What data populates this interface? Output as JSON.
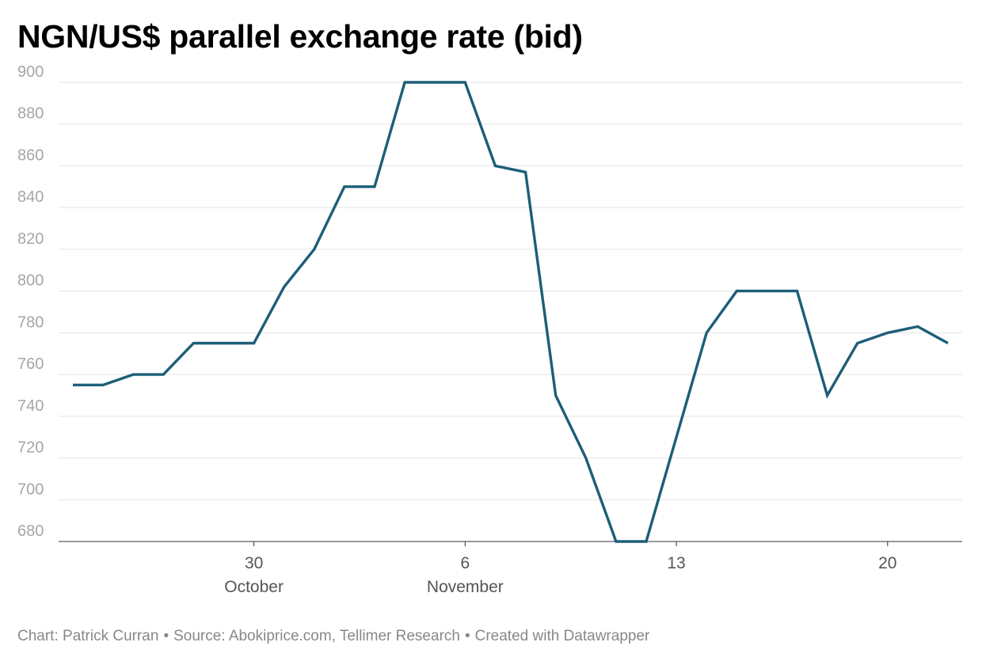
{
  "chart_data": {
    "type": "line",
    "title": "NGN/US$ parallel exchange rate (bid)",
    "xlabel": "",
    "ylabel": "",
    "x_axis": {
      "type": "date",
      "range": [
        "2022-10-24",
        "2022-11-22"
      ],
      "ticks": [
        {
          "date": "2022-10-30",
          "label": "30",
          "sublabel": "October"
        },
        {
          "date": "2022-11-06",
          "label": "6",
          "sublabel": "November"
        },
        {
          "date": "2022-11-13",
          "label": "13",
          "sublabel": ""
        },
        {
          "date": "2022-11-20",
          "label": "20",
          "sublabel": ""
        }
      ]
    },
    "ylim": [
      680,
      900
    ],
    "yticks": [
      900,
      880,
      860,
      840,
      820,
      800,
      780,
      760,
      740,
      720,
      700,
      680
    ],
    "grid": true,
    "line_color": "#1d5e78",
    "series": [
      {
        "x": [
          "2022-10-24",
          "2022-10-25",
          "2022-10-26",
          "2022-10-27",
          "2022-10-28",
          "2022-10-29",
          "2022-10-30",
          "2022-10-31",
          "2022-11-01",
          "2022-11-02",
          "2022-11-03",
          "2022-11-04",
          "2022-11-05",
          "2022-11-06",
          "2022-11-07",
          "2022-11-08",
          "2022-11-09",
          "2022-11-10",
          "2022-11-11",
          "2022-11-12",
          "2022-11-13",
          "2022-11-14",
          "2022-11-15",
          "2022-11-16",
          "2022-11-17",
          "2022-11-18",
          "2022-11-19",
          "2022-11-20",
          "2022-11-21",
          "2022-11-22"
        ],
        "values": [
          755,
          755,
          760,
          760,
          775,
          775,
          775,
          802,
          820,
          850,
          850,
          900,
          900,
          900,
          860,
          857,
          750,
          720,
          680,
          680,
          730,
          780,
          800,
          800,
          800,
          750,
          775,
          780,
          783,
          775
        ]
      }
    ]
  },
  "footer": {
    "chart_credit": "Chart: Patrick Curran",
    "source": "Source: Abokiprice.com, Tellimer Research",
    "created_with": "Created with Datawrapper",
    "separator": "•"
  }
}
